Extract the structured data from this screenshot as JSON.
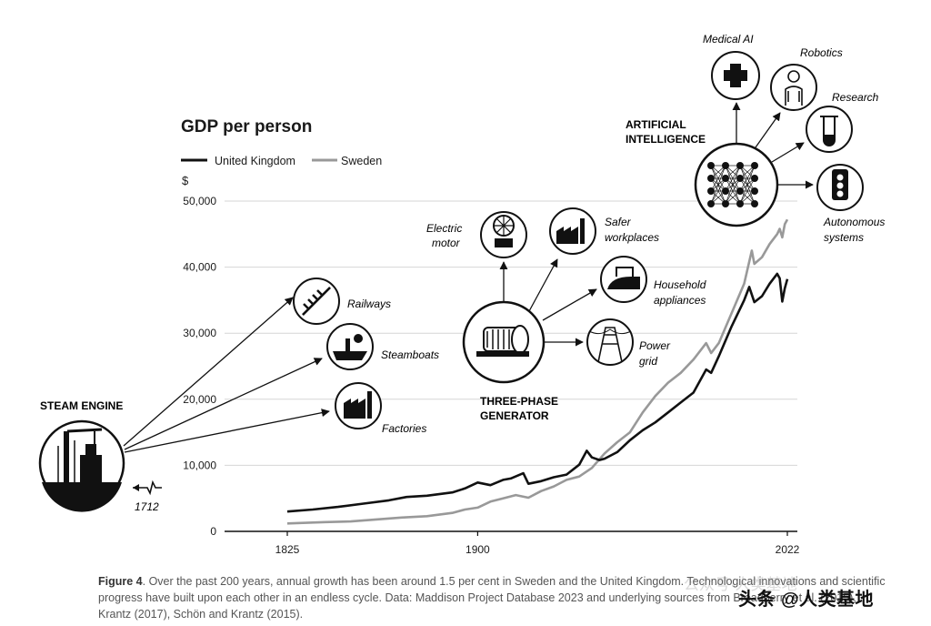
{
  "chart_data": {
    "type": "line",
    "title": "GDP per person",
    "ylabel": "$",
    "xlabel": "",
    "xlim": [
      1825,
      2022
    ],
    "ylim": [
      0,
      50000
    ],
    "x_ticks": [
      1825,
      1900,
      2022
    ],
    "y_ticks": [
      0,
      10000,
      20000,
      30000,
      40000,
      50000
    ],
    "y_tick_labels": [
      "0",
      "10,000",
      "20,000",
      "30,000",
      "40,000",
      "50,000"
    ],
    "grid": true,
    "legend_position": "top-left",
    "series": [
      {
        "name": "United Kingdom",
        "color": "#111111",
        "x": [
          1825,
          1835,
          1845,
          1855,
          1865,
          1872,
          1880,
          1890,
          1895,
          1900,
          1905,
          1910,
          1913,
          1918,
          1920,
          1925,
          1930,
          1935,
          1940,
          1943,
          1945,
          1948,
          1950,
          1955,
          1960,
          1965,
          1970,
          1975,
          1980,
          1985,
          1990,
          1992,
          1995,
          2000,
          2005,
          2007,
          2009,
          2012,
          2015,
          2018,
          2019,
          2020,
          2021,
          2022
        ],
        "values": [
          3000,
          3300,
          3700,
          4200,
          4700,
          5200,
          5400,
          5900,
          6500,
          7400,
          7000,
          7800,
          8000,
          8800,
          7200,
          7600,
          8200,
          8600,
          10100,
          12200,
          11200,
          10800,
          11000,
          12000,
          13800,
          15300,
          16500,
          18000,
          19500,
          21000,
          24500,
          24000,
          26500,
          31000,
          35000,
          37000,
          34700,
          35600,
          37500,
          39000,
          38300,
          34800,
          36800,
          38200
        ]
      },
      {
        "name": "Sweden",
        "color": "#999999",
        "x": [
          1825,
          1840,
          1850,
          1860,
          1870,
          1880,
          1890,
          1895,
          1900,
          1905,
          1910,
          1915,
          1920,
          1925,
          1930,
          1935,
          1940,
          1945,
          1950,
          1955,
          1960,
          1965,
          1970,
          1975,
          1980,
          1985,
          1990,
          1992,
          1995,
          2000,
          2005,
          2008,
          2009,
          2012,
          2015,
          2018,
          2019,
          2020,
          2021,
          2022
        ],
        "values": [
          1200,
          1400,
          1500,
          1800,
          2100,
          2300,
          2800,
          3300,
          3600,
          4500,
          5000,
          5500,
          5100,
          6100,
          6800,
          7800,
          8300,
          9600,
          11800,
          13500,
          15000,
          18000,
          20500,
          22500,
          24000,
          26000,
          28500,
          27000,
          28500,
          33000,
          37500,
          42500,
          40500,
          41500,
          43500,
          45000,
          45800,
          44500,
          46500,
          47200
        ]
      }
    ],
    "annotations": {
      "steam_engine": {
        "label": "STEAM ENGINE",
        "year": "1712",
        "children": [
          "Railways",
          "Steamboats",
          "Factories"
        ]
      },
      "generator": {
        "label_line1": "THREE-PHASE",
        "label_line2": "GENERATOR",
        "children": [
          "Electric motor",
          "Safer workplaces",
          "Household appliances",
          "Power grid"
        ]
      },
      "ai": {
        "label_line1": "ARTIFICIAL",
        "label_line2": "INTELLIGENCE",
        "children": [
          "Medical AI",
          "Robotics",
          "Research",
          "Autonomous systems"
        ]
      }
    }
  },
  "labels": {
    "title": "GDP per person",
    "legend_uk": "United Kingdom",
    "legend_se": "Sweden",
    "y_unit": "$",
    "steam_engine": "STEAM ENGINE",
    "year_1712": "1712",
    "railways": "Railways",
    "steamboats": "Steamboats",
    "factories": "Factories",
    "electric_1": "Electric",
    "electric_2": "motor",
    "safer_1": "Safer",
    "safer_2": "workplaces",
    "household_1": "Household",
    "household_2": "appliances",
    "power_1": "Power",
    "power_2": "grid",
    "gen_1": "THREE-PHASE",
    "gen_2": "GENERATOR",
    "ai_1": "ARTIFICIAL",
    "ai_2": "INTELLIGENCE",
    "medical_ai": "Medical AI",
    "robotics": "Robotics",
    "research": "Research",
    "auto_1": "Autonomous",
    "auto_2": "systems"
  },
  "caption": {
    "figure_label": "Figure 4",
    "text": ". Over the past 200 years, annual growth has been around 1.5 per cent in Sweden and the United Kingdom. Technological innovations and scientific progress have built upon each other in an endless cycle. Data: Maddison Project Database 2023 and underlying sources from Broadberry et al. (2015), Krantz (2017), Schön and Krantz (2015)."
  },
  "watermark": {
    "main": "头条 @人类基地",
    "ghost": "公众号·人类基地"
  }
}
